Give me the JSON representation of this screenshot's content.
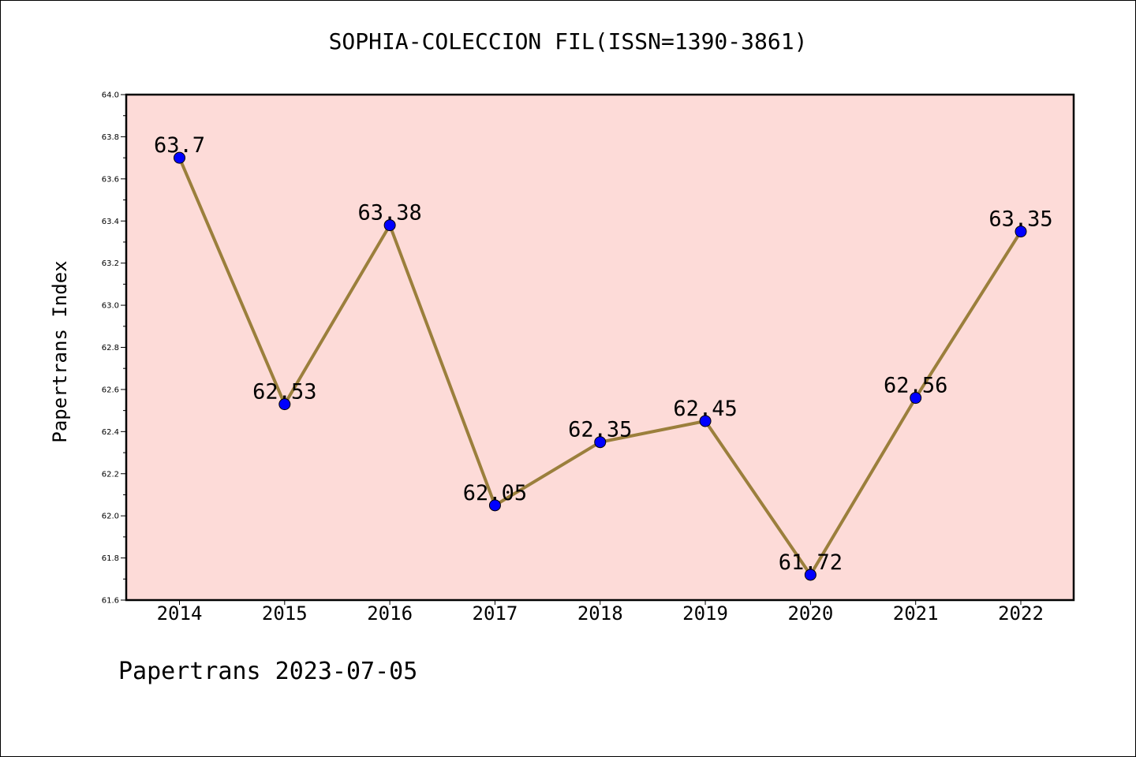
{
  "title": "SOPHIA-COLECCION FIL(ISSN=1390-3861)",
  "footer": "Papertrans 2023-07-05",
  "colors": {
    "background": "#fddbd8",
    "line": "#9b7f3c",
    "marker": "#0000ff"
  },
  "chart_data": {
    "type": "line",
    "title": "SOPHIA-COLECCION FIL(ISSN=1390-3861)",
    "xlabel": "",
    "ylabel": "Papertrans Index",
    "categories": [
      "2014",
      "2015",
      "2016",
      "2017",
      "2018",
      "2019",
      "2020",
      "2021",
      "2022"
    ],
    "values": [
      63.7,
      62.53,
      63.38,
      62.05,
      62.35,
      62.45,
      61.72,
      62.56,
      63.35
    ],
    "data_labels": [
      "63.7",
      "62.53",
      "63.38",
      "62.05",
      "62.35",
      "62.45",
      "61.72",
      "62.56",
      "63.35"
    ],
    "ylim": [
      61.6,
      64.0
    ],
    "yticks": [
      "61.6",
      "61.8",
      "62.0",
      "62.2",
      "62.4",
      "62.6",
      "62.8",
      "63.0",
      "63.2",
      "63.4",
      "63.6",
      "63.8",
      "64.0"
    ],
    "grid": false,
    "legend": "none"
  }
}
